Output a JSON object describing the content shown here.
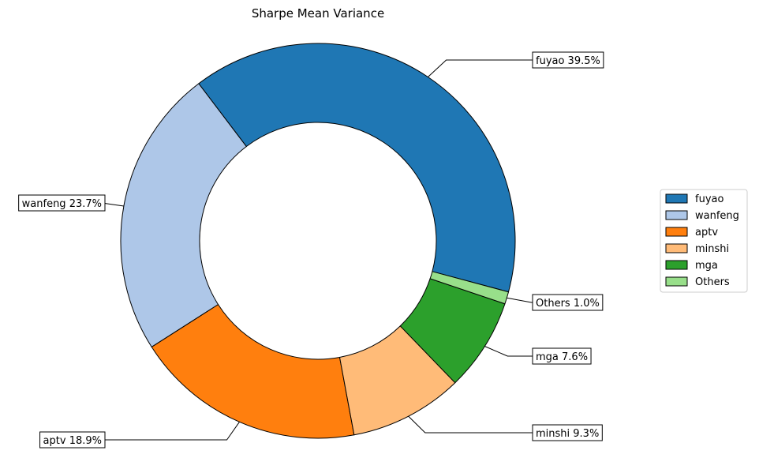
{
  "chart_data": {
    "type": "pie",
    "style": "donut",
    "title": "Sharpe Mean Variance",
    "start_angle_deg": 345,
    "direction": "counterclockwise",
    "slices": [
      {
        "label": "fuyao",
        "value": 39.5,
        "display": "fuyao 39.5%",
        "color": "#1f77b4"
      },
      {
        "label": "wanfeng",
        "value": 23.7,
        "display": "wanfeng 23.7%",
        "color": "#aec7e8"
      },
      {
        "label": "aptv",
        "value": 18.9,
        "display": "aptv 18.9%",
        "color": "#ff7f0e"
      },
      {
        "label": "minshi",
        "value": 9.3,
        "display": "minshi 9.3%",
        "color": "#ffbb78"
      },
      {
        "label": "mga",
        "value": 7.6,
        "display": "mga 7.6%",
        "color": "#2ca02c"
      },
      {
        "label": "Others",
        "value": 1.0,
        "display": "Others 1.0%",
        "color": "#98df8a"
      }
    ],
    "legend": {
      "placement": "right",
      "entries": [
        "fuyao",
        "wanfeng",
        "aptv",
        "minshi",
        "mga",
        "Others"
      ]
    }
  }
}
